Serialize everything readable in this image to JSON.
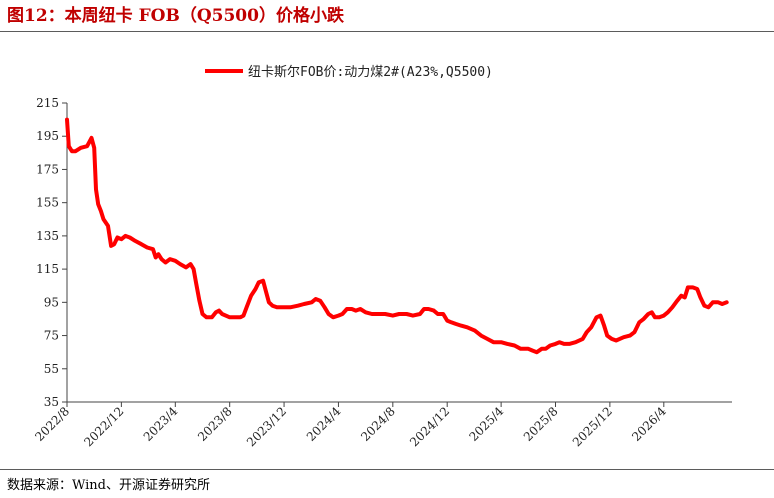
{
  "figure_title": "图12：本周纽卡 FOB（Q5500）价格小跌",
  "source_note": "数据来源：Wind、开源证券研究所",
  "chart_data": {
    "type": "line",
    "title": "",
    "xlabel": "",
    "ylabel": "",
    "legend_position": "top-center",
    "grid": false,
    "ylim": [
      35,
      215
    ],
    "yticks": [
      35,
      55,
      75,
      95,
      115,
      135,
      155,
      175,
      195,
      215
    ],
    "xlim": [
      "2022-08",
      "2026-09"
    ],
    "xticks": [
      "2022/8",
      "2022/12",
      "2023/4",
      "2023/8",
      "2023/12",
      "2024/4",
      "2024/8",
      "2024/12",
      "2025/4",
      "2025/8",
      "2025/12",
      "2026/4"
    ],
    "series": [
      {
        "name": "纽卡斯尔FOB价:动力煤2#(A23%,Q5500)",
        "color": "#ff0000",
        "points": [
          [
            "2022-08-01",
            205
          ],
          [
            "2022-08-05",
            189
          ],
          [
            "2022-08-12",
            186
          ],
          [
            "2022-08-20",
            186
          ],
          [
            "2022-09-01",
            188
          ],
          [
            "2022-09-15",
            189
          ],
          [
            "2022-09-25",
            194
          ],
          [
            "2022-10-01",
            188
          ],
          [
            "2022-10-05",
            163
          ],
          [
            "2022-10-10",
            154
          ],
          [
            "2022-10-16",
            150
          ],
          [
            "2022-10-22",
            145
          ],
          [
            "2022-11-01",
            141
          ],
          [
            "2022-11-08",
            129
          ],
          [
            "2022-11-15",
            130
          ],
          [
            "2022-11-22",
            134
          ],
          [
            "2022-12-01",
            133
          ],
          [
            "2022-12-10",
            135
          ],
          [
            "2022-12-20",
            134
          ],
          [
            "2023-01-01",
            132
          ],
          [
            "2023-01-15",
            130
          ],
          [
            "2023-01-28",
            128
          ],
          [
            "2023-02-10",
            127
          ],
          [
            "2023-02-16",
            122
          ],
          [
            "2023-02-22",
            124
          ],
          [
            "2023-03-01",
            121
          ],
          [
            "2023-03-10",
            119
          ],
          [
            "2023-03-20",
            121
          ],
          [
            "2023-04-01",
            120
          ],
          [
            "2023-04-12",
            118
          ],
          [
            "2023-04-25",
            116
          ],
          [
            "2023-05-05",
            118
          ],
          [
            "2023-05-12",
            115
          ],
          [
            "2023-05-18",
            106
          ],
          [
            "2023-05-25",
            96
          ],
          [
            "2023-06-01",
            88
          ],
          [
            "2023-06-10",
            86
          ],
          [
            "2023-06-22",
            86
          ],
          [
            "2023-07-01",
            89
          ],
          [
            "2023-07-08",
            90
          ],
          [
            "2023-07-15",
            88
          ],
          [
            "2023-08-01",
            86
          ],
          [
            "2023-08-15",
            86
          ],
          [
            "2023-08-25",
            86
          ],
          [
            "2023-09-01",
            87
          ],
          [
            "2023-09-08",
            92
          ],
          [
            "2023-09-18",
            99
          ],
          [
            "2023-09-28",
            103
          ],
          [
            "2023-10-05",
            107
          ],
          [
            "2023-10-15",
            108
          ],
          [
            "2023-10-22",
            101
          ],
          [
            "2023-10-28",
            95
          ],
          [
            "2023-11-05",
            93
          ],
          [
            "2023-11-15",
            92
          ],
          [
            "2023-12-01",
            92
          ],
          [
            "2023-12-15",
            92
          ],
          [
            "2024-01-01",
            93
          ],
          [
            "2024-01-15",
            94
          ],
          [
            "2024-02-01",
            95
          ],
          [
            "2024-02-10",
            97
          ],
          [
            "2024-02-20",
            96
          ],
          [
            "2024-03-01",
            92
          ],
          [
            "2024-03-10",
            88
          ],
          [
            "2024-03-20",
            86
          ],
          [
            "2024-04-01",
            87
          ],
          [
            "2024-04-10",
            88
          ],
          [
            "2024-04-20",
            91
          ],
          [
            "2024-05-01",
            91
          ],
          [
            "2024-05-10",
            90
          ],
          [
            "2024-05-20",
            91
          ],
          [
            "2024-06-01",
            89
          ],
          [
            "2024-06-15",
            88
          ],
          [
            "2024-07-01",
            88
          ],
          [
            "2024-07-15",
            88
          ],
          [
            "2024-08-01",
            87
          ],
          [
            "2024-08-15",
            88
          ],
          [
            "2024-09-01",
            88
          ],
          [
            "2024-09-15",
            87
          ],
          [
            "2024-10-01",
            88
          ],
          [
            "2024-10-10",
            91
          ],
          [
            "2024-10-20",
            91
          ],
          [
            "2024-11-01",
            90
          ],
          [
            "2024-11-10",
            88
          ],
          [
            "2024-11-22",
            88
          ],
          [
            "2024-12-01",
            84
          ],
          [
            "2024-12-10",
            83
          ],
          [
            "2024-12-20",
            82
          ],
          [
            "2025-01-01",
            81
          ],
          [
            "2025-01-15",
            80
          ],
          [
            "2025-02-01",
            78
          ],
          [
            "2025-02-15",
            75
          ],
          [
            "2025-03-01",
            73
          ],
          [
            "2025-03-15",
            71
          ],
          [
            "2025-04-01",
            71
          ],
          [
            "2025-04-15",
            70
          ],
          [
            "2025-05-01",
            69
          ],
          [
            "2025-05-15",
            67
          ],
          [
            "2025-06-01",
            67
          ],
          [
            "2025-06-10",
            66
          ],
          [
            "2025-06-20",
            65
          ],
          [
            "2025-07-01",
            67
          ],
          [
            "2025-07-10",
            67
          ],
          [
            "2025-07-20",
            69
          ],
          [
            "2025-08-01",
            70
          ],
          [
            "2025-08-10",
            71
          ],
          [
            "2025-08-20",
            70
          ],
          [
            "2025-09-01",
            70
          ],
          [
            "2025-09-15",
            71
          ],
          [
            "2025-10-01",
            73
          ],
          [
            "2025-10-10",
            77
          ],
          [
            "2025-10-20",
            80
          ],
          [
            "2025-11-01",
            86
          ],
          [
            "2025-11-10",
            87
          ],
          [
            "2025-11-18",
            81
          ],
          [
            "2025-11-25",
            75
          ],
          [
            "2025-12-05",
            73
          ],
          [
            "2025-12-15",
            72
          ],
          [
            "2026-01-01",
            74
          ],
          [
            "2026-01-15",
            75
          ],
          [
            "2026-01-25",
            77
          ],
          [
            "2026-02-05",
            83
          ],
          [
            "2026-02-15",
            85
          ],
          [
            "2026-02-25",
            88
          ],
          [
            "2026-03-05",
            89
          ],
          [
            "2026-03-12",
            86
          ],
          [
            "2026-03-22",
            86
          ],
          [
            "2026-04-01",
            87
          ],
          [
            "2026-04-10",
            89
          ],
          [
            "2026-04-20",
            92
          ],
          [
            "2026-05-01",
            96
          ],
          [
            "2026-05-10",
            99
          ],
          [
            "2026-05-18",
            98
          ],
          [
            "2026-05-25",
            104
          ],
          [
            "2026-06-05",
            104
          ],
          [
            "2026-06-15",
            103
          ],
          [
            "2026-06-22",
            98
          ],
          [
            "2026-07-01",
            93
          ],
          [
            "2026-07-10",
            92
          ],
          [
            "2026-07-20",
            95
          ],
          [
            "2026-08-01",
            95
          ],
          [
            "2026-08-10",
            94
          ],
          [
            "2026-08-20",
            95
          ]
        ]
      }
    ]
  }
}
